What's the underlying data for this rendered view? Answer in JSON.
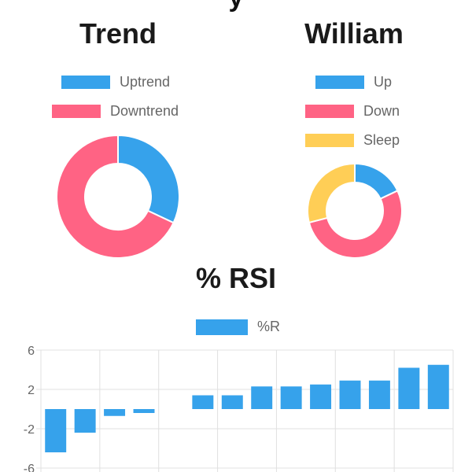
{
  "header": {
    "partial_title": "y"
  },
  "colors": {
    "blue": "#36a2eb",
    "red": "#ff6384",
    "yellow": "#ffce56",
    "grid": "#e0e0e0"
  },
  "chart_data": [
    {
      "type": "pie",
      "title": "Trend",
      "legend": [
        "Uptrend",
        "Downtrend"
      ],
      "values": [
        32,
        68
      ],
      "colors": [
        "#36a2eb",
        "#ff6384"
      ]
    },
    {
      "type": "pie",
      "title": "William",
      "legend": [
        "Up",
        "Down",
        "Sleep"
      ],
      "values": [
        18,
        53,
        29
      ],
      "colors": [
        "#36a2eb",
        "#ff6384",
        "#ffce56"
      ]
    },
    {
      "type": "bar",
      "title": "% RSI",
      "series": [
        {
          "name": "%R",
          "values": [
            -4.4,
            -2.4,
            -0.7,
            -0.4,
            0,
            1.4,
            1.4,
            2.3,
            2.3,
            2.5,
            2.9,
            2.9,
            4.2,
            4.5
          ]
        }
      ],
      "y_ticks": [
        "6",
        "2",
        "-2",
        "-6"
      ],
      "ylim": [
        -6,
        6
      ],
      "grid": true,
      "legend_position": "top"
    }
  ]
}
